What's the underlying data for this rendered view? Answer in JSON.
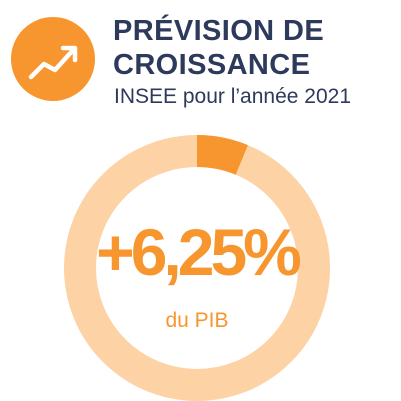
{
  "header": {
    "title_line1": "PRÉVISION DE",
    "title_line2": "CROISSANCE",
    "subtitle": "INSEE pour l’année 2021",
    "icon": "trending-up-icon"
  },
  "gauge": {
    "value_label": "+6,25%",
    "unit_label": "du PIB",
    "value_percent": 6.25
  },
  "colors": {
    "accent": "#f7962f",
    "ring_background": "#fdd2a5",
    "title_text": "#2e3a5c",
    "icon_stroke": "#ffffff"
  }
}
